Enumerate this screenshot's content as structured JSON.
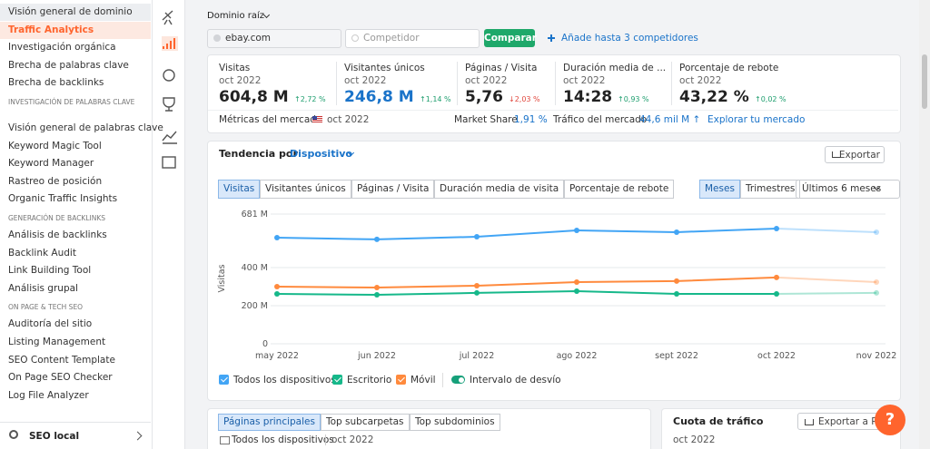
{
  "sidebar": {
    "top": [
      "Visión general de dominio",
      "Traffic Analytics",
      "Investigación orgánica",
      "Brecha de palabras clave",
      "Brecha de backlinks"
    ],
    "active": 1,
    "groups": [
      {
        "title": "INVESTIGACIÓN DE PALABRAS CLAVE",
        "items": [
          "Visión general de palabras clave",
          "Keyword Magic Tool",
          "Keyword Manager",
          "Rastreo de posición",
          "Organic Traffic Insights"
        ]
      },
      {
        "title": "GENERACIÓN DE BACKLINKS",
        "items": [
          "Análisis de backlinks",
          "Backlink Audit",
          "Link Building Tool",
          "Análisis grupal"
        ]
      },
      {
        "title": "ON PAGE & TECH SEO",
        "items": [
          "Auditoría del sitio",
          "Listing Management",
          "SEO Content Template",
          "On Page SEO Checker",
          "Log File Analyzer"
        ]
      }
    ],
    "footer": "SEO local"
  },
  "header": {
    "scope": "Dominio raíz",
    "domain": "ebay.com",
    "competitor": "Competidor",
    "button": "Comparar",
    "add": "Añade hasta 3 competidores"
  },
  "metrics": [
    {
      "label": "Visitas",
      "date": "oct 2022",
      "value": "604,8 M",
      "change": "↑2,72 %",
      "color": "#222",
      "change_color": "#1e9e6e"
    },
    {
      "label": "Visitantes únicos",
      "date": "oct 2022",
      "value": "246,8 M",
      "change": "↑1,14 %",
      "color": "#1a73c9",
      "change_color": "#1e9e6e"
    },
    {
      "label": "Páginas / Visita",
      "date": "oct 2022",
      "value": "5,76",
      "change": "↓2,03 %",
      "color": "#222",
      "change_color": "#e0463c"
    },
    {
      "label": "Duración media de ...",
      "date": "oct 2022",
      "value": "14:28",
      "change": "↑0,93 %",
      "color": "#222",
      "change_color": "#1e9e6e"
    },
    {
      "label": "Porcentaje de rebote",
      "date": "oct 2022",
      "value": "43,22 %",
      "change": "↑0,02 %",
      "color": "#222",
      "change_color": "#1e9e6e"
    }
  ],
  "market": {
    "label": "Métricas del mercado",
    "date": "oct 2022",
    "share_label": "Market Share",
    "share": "1,91 %",
    "traffic_label": "Tráfico del mercado",
    "traffic": "44,6 mil M ↑",
    "link": "Explorar tu mercado"
  },
  "trend": {
    "title": "Tendencia por",
    "dropdown": "Dispositivo",
    "export": "Exportar",
    "tabs": [
      "Visitas",
      "Visitantes únicos",
      "Páginas / Visita",
      "Duración media de visita",
      "Porcentaje de rebote"
    ],
    "periods": [
      "Meses",
      "Trimestres"
    ],
    "range": "Últimos 6 meses",
    "toggle": "Intervalo de desvío"
  },
  "chart_data": {
    "type": "line",
    "y_label": "Visitas",
    "categories": [
      "may 2022",
      "jun 2022",
      "jul 2022",
      "ago 2022",
      "sept 2022",
      "oct 2022",
      "nov 2022"
    ],
    "ylim": [
      0,
      681
    ],
    "yticks": [
      0,
      {
        "value": 200,
        "label": "200 M"
      },
      {
        "value": 400,
        "label": "400 M"
      },
      {
        "value": 681,
        "label": "681 M"
      }
    ],
    "grid": true,
    "series": [
      {
        "name": "Todos los dispositivos",
        "color": "#42a5f5",
        "values": [
          557,
          548,
          562,
          595,
          586,
          605,
          586
        ]
      },
      {
        "name": "Escritorio",
        "color": "#16b88a",
        "values": [
          262,
          257,
          267,
          276,
          262,
          262,
          267
        ]
      },
      {
        "name": "Móvil",
        "color": "#ff8a3d",
        "values": [
          300,
          295,
          305,
          324,
          329,
          348,
          324
        ]
      }
    ]
  },
  "top_pages": {
    "tabs": [
      "Páginas principales",
      "Top subcarpetas",
      "Top subdominios"
    ],
    "device": "Todos los dispositivos",
    "date": "oct 2022"
  },
  "traffic_share": {
    "title": "Cuota de tráfico",
    "export": "Exportar a PNG",
    "date": "oct 2022"
  },
  "help": "?"
}
